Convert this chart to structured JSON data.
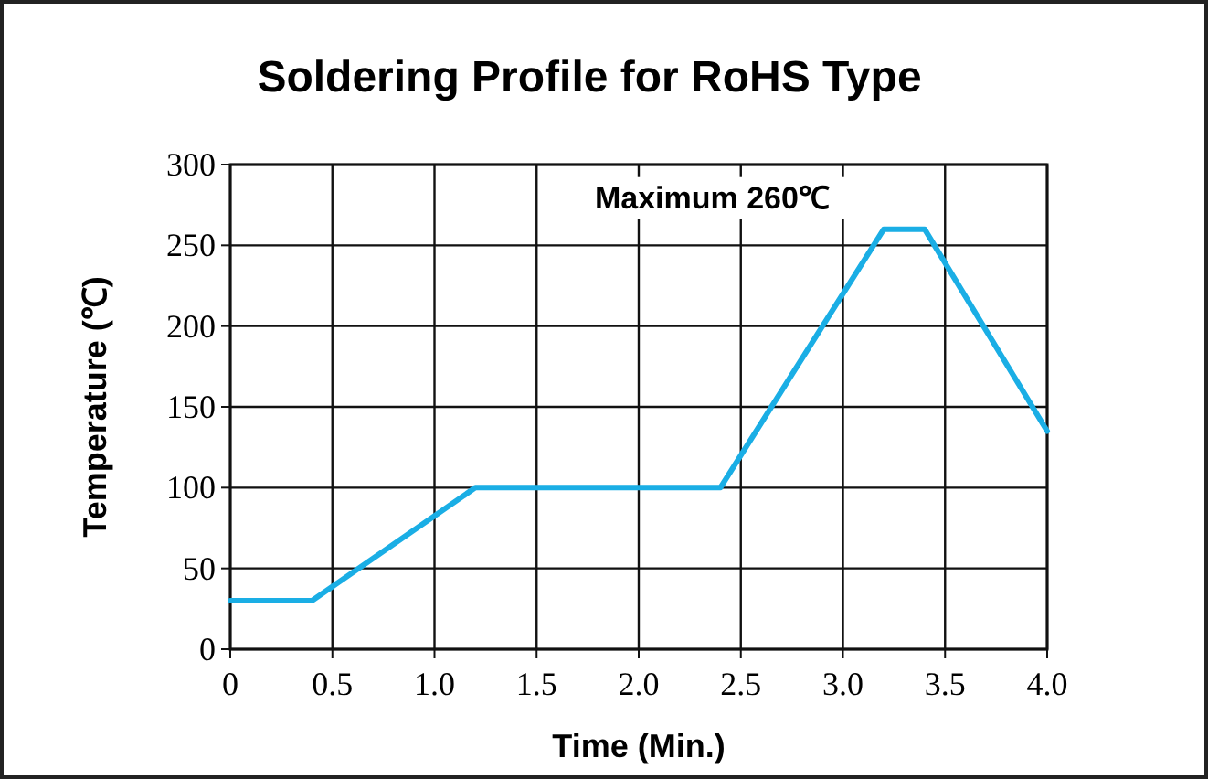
{
  "chart_data": {
    "type": "line",
    "title": "Soldering Profile for RoHS Type",
    "xlabel": "Time (Min.)",
    "ylabel": "Temperature (℃)",
    "annotations": [
      "Maximum 260℃"
    ],
    "x": [
      0,
      0.4,
      1.2,
      2.4,
      3.2,
      3.4,
      4.0
    ],
    "series": [
      {
        "color": "#1aaee5",
        "values": [
          30,
          30,
          100,
          100,
          260,
          260,
          135
        ]
      }
    ],
    "xlim": [
      0,
      4
    ],
    "xticks": [
      0,
      0.5,
      {
        "value": 1,
        "label": "1.0"
      },
      1.5,
      {
        "value": 2,
        "label": "2.0"
      },
      2.5,
      {
        "value": 3,
        "label": "3.0"
      },
      3.5,
      {
        "value": 4,
        "label": "4.0"
      }
    ],
    "ylim": [
      0,
      300
    ],
    "yticks": [
      0,
      50,
      100,
      150,
      200,
      250,
      300
    ],
    "grid": true,
    "marker": "none",
    "line_style": "solid"
  }
}
